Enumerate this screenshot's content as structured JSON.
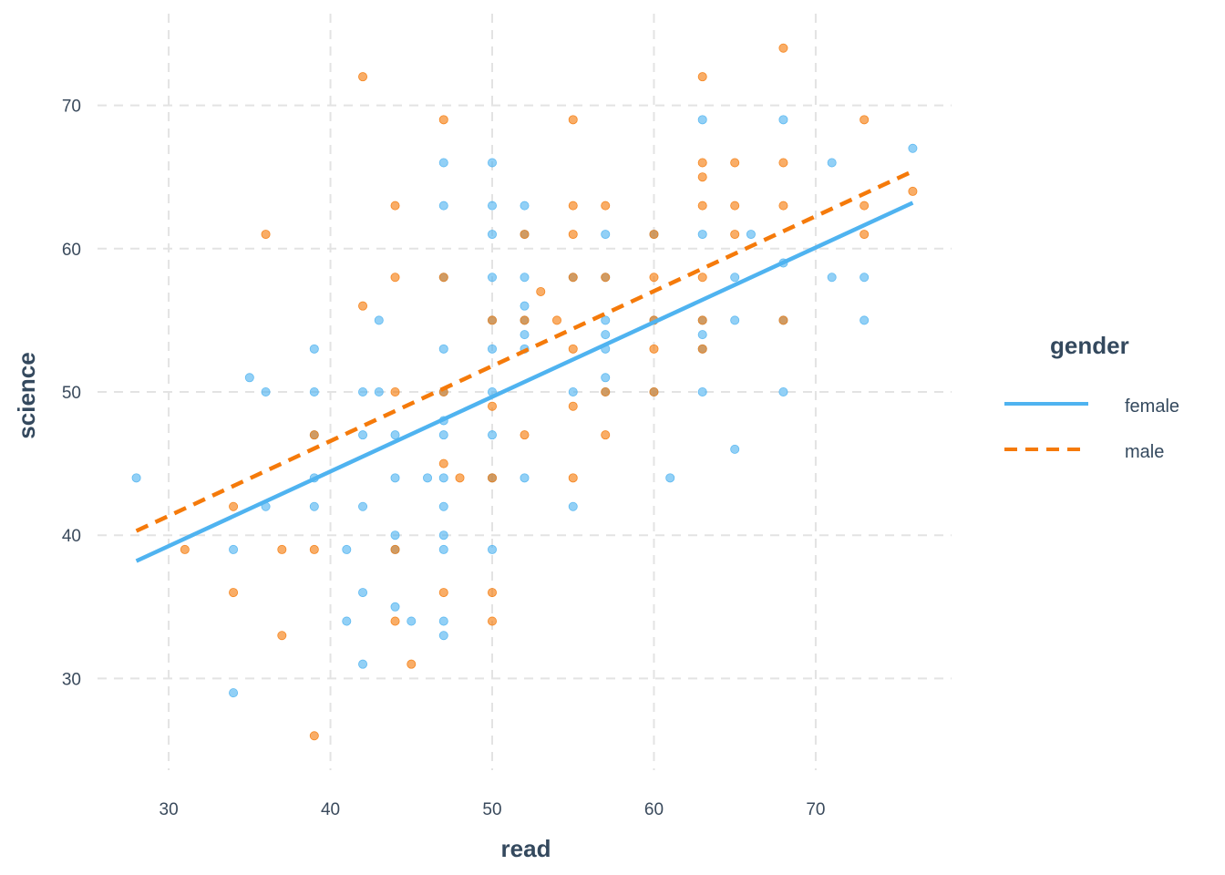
{
  "chart_data": {
    "type": "scatter",
    "xlabel": "read",
    "ylabel": "science",
    "xlim": [
      25.6,
      78.4
    ],
    "ylim": [
      23.6,
      76.4
    ],
    "x_ticks": [
      30,
      40,
      50,
      60,
      70
    ],
    "y_ticks": [
      30,
      40,
      50,
      60,
      70
    ],
    "grid": true,
    "legend": {
      "title": "gender",
      "placement": "right",
      "entries": [
        {
          "name": "female",
          "color": "#4FB3F0",
          "linetype": "solid"
        },
        {
          "name": "male",
          "color": "#F57A0A",
          "linetype": "dashed"
        }
      ]
    },
    "series": [
      {
        "name": "female",
        "color": "#4FB3F0",
        "points": [
          [
            28,
            44
          ],
          [
            34,
            29
          ],
          [
            34,
            39
          ],
          [
            35,
            51
          ],
          [
            36,
            42
          ],
          [
            36,
            50
          ],
          [
            39,
            53
          ],
          [
            39,
            50
          ],
          [
            39,
            47
          ],
          [
            39,
            44
          ],
          [
            39,
            42
          ],
          [
            41,
            34
          ],
          [
            41,
            39
          ],
          [
            42,
            31
          ],
          [
            42,
            36
          ],
          [
            42,
            42
          ],
          [
            42,
            47
          ],
          [
            42,
            50
          ],
          [
            43,
            55
          ],
          [
            43,
            50
          ],
          [
            44,
            35
          ],
          [
            44,
            40
          ],
          [
            44,
            44
          ],
          [
            44,
            47
          ],
          [
            44,
            39
          ],
          [
            45,
            34
          ],
          [
            46,
            44
          ],
          [
            47,
            33
          ],
          [
            47,
            34
          ],
          [
            47,
            39
          ],
          [
            47,
            40
          ],
          [
            47,
            42
          ],
          [
            47,
            44
          ],
          [
            47,
            47
          ],
          [
            47,
            48
          ],
          [
            47,
            50
          ],
          [
            47,
            53
          ],
          [
            47,
            58
          ],
          [
            47,
            63
          ],
          [
            47,
            66
          ],
          [
            50,
            39
          ],
          [
            50,
            44
          ],
          [
            50,
            47
          ],
          [
            50,
            50
          ],
          [
            50,
            53
          ],
          [
            50,
            55
          ],
          [
            50,
            58
          ],
          [
            50,
            61
          ],
          [
            50,
            63
          ],
          [
            50,
            66
          ],
          [
            52,
            44
          ],
          [
            52,
            53
          ],
          [
            52,
            54
          ],
          [
            52,
            55
          ],
          [
            52,
            56
          ],
          [
            52,
            58
          ],
          [
            52,
            61
          ],
          [
            52,
            63
          ],
          [
            55,
            42
          ],
          [
            55,
            50
          ],
          [
            55,
            58
          ],
          [
            57,
            50
          ],
          [
            57,
            51
          ],
          [
            57,
            53
          ],
          [
            57,
            54
          ],
          [
            57,
            55
          ],
          [
            57,
            58
          ],
          [
            57,
            61
          ],
          [
            60,
            50
          ],
          [
            60,
            55
          ],
          [
            60,
            61
          ],
          [
            61,
            44
          ],
          [
            63,
            50
          ],
          [
            63,
            53
          ],
          [
            63,
            54
          ],
          [
            63,
            55
          ],
          [
            63,
            61
          ],
          [
            63,
            69
          ],
          [
            65,
            46
          ],
          [
            65,
            55
          ],
          [
            65,
            58
          ],
          [
            66,
            61
          ],
          [
            68,
            50
          ],
          [
            68,
            55
          ],
          [
            68,
            59
          ],
          [
            68,
            69
          ],
          [
            71,
            58
          ],
          [
            71,
            66
          ],
          [
            73,
            55
          ],
          [
            73,
            58
          ],
          [
            76,
            67
          ]
        ],
        "fit": {
          "x": [
            28,
            76
          ],
          "y": [
            38.2,
            63.2
          ]
        }
      },
      {
        "name": "male",
        "color": "#F57A0A",
        "points": [
          [
            31,
            39
          ],
          [
            34,
            36
          ],
          [
            34,
            42
          ],
          [
            36,
            61
          ],
          [
            37,
            33
          ],
          [
            37,
            39
          ],
          [
            39,
            26
          ],
          [
            39,
            39
          ],
          [
            39,
            47
          ],
          [
            42,
            56
          ],
          [
            42,
            72
          ],
          [
            44,
            34
          ],
          [
            44,
            39
          ],
          [
            44,
            50
          ],
          [
            44,
            58
          ],
          [
            44,
            63
          ],
          [
            45,
            31
          ],
          [
            47,
            36
          ],
          [
            47,
            45
          ],
          [
            47,
            50
          ],
          [
            47,
            58
          ],
          [
            47,
            69
          ],
          [
            48,
            44
          ],
          [
            50,
            34
          ],
          [
            50,
            36
          ],
          [
            50,
            44
          ],
          [
            50,
            49
          ],
          [
            50,
            55
          ],
          [
            52,
            47
          ],
          [
            52,
            55
          ],
          [
            52,
            61
          ],
          [
            53,
            57
          ],
          [
            54,
            55
          ],
          [
            55,
            44
          ],
          [
            55,
            49
          ],
          [
            55,
            53
          ],
          [
            55,
            58
          ],
          [
            55,
            61
          ],
          [
            55,
            63
          ],
          [
            55,
            69
          ],
          [
            57,
            47
          ],
          [
            57,
            50
          ],
          [
            57,
            58
          ],
          [
            57,
            63
          ],
          [
            60,
            50
          ],
          [
            60,
            53
          ],
          [
            60,
            55
          ],
          [
            60,
            58
          ],
          [
            60,
            61
          ],
          [
            63,
            53
          ],
          [
            63,
            55
          ],
          [
            63,
            58
          ],
          [
            63,
            63
          ],
          [
            63,
            65
          ],
          [
            63,
            66
          ],
          [
            63,
            72
          ],
          [
            65,
            61
          ],
          [
            65,
            63
          ],
          [
            65,
            66
          ],
          [
            68,
            55
          ],
          [
            68,
            63
          ],
          [
            68,
            66
          ],
          [
            68,
            74
          ],
          [
            73,
            61
          ],
          [
            73,
            63
          ],
          [
            73,
            69
          ],
          [
            76,
            64
          ]
        ],
        "fit": {
          "x": [
            28,
            76
          ],
          "y": [
            40.3,
            65.4
          ]
        }
      }
    ]
  }
}
